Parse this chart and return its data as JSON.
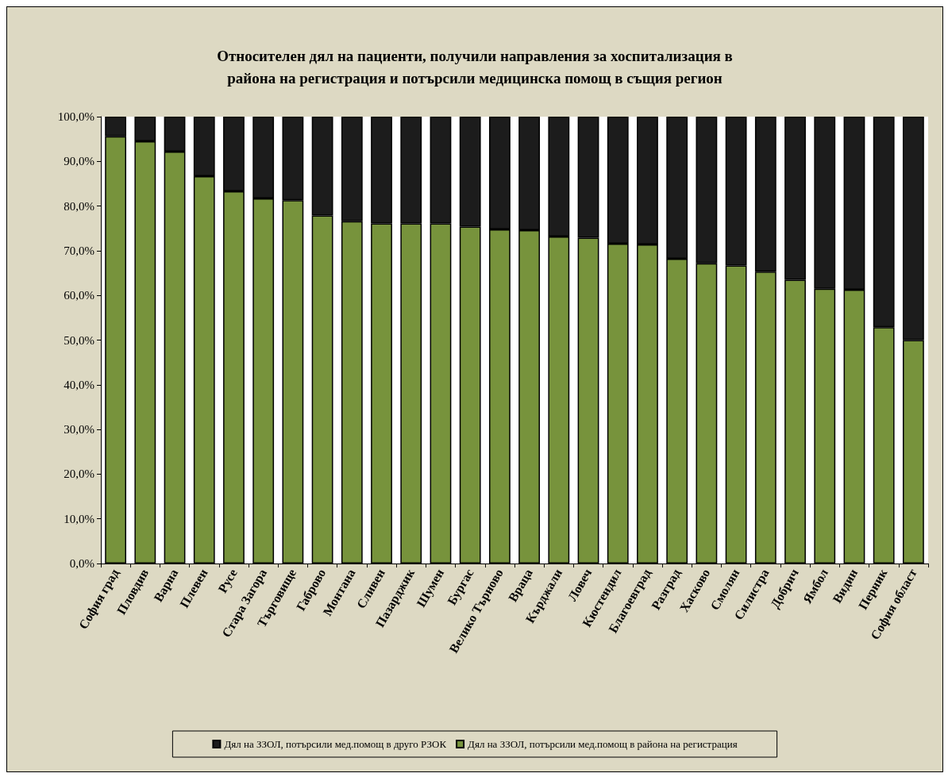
{
  "chart_data": {
    "type": "bar",
    "stacked": true,
    "title": "Относителен дял на пациенти, получили направления за хоспитализация в\nрайона на регистрация и потърсили медицинска помощ в същия регион",
    "categories": [
      "София град",
      "Пловдив",
      "Варна",
      "Плевен",
      "Русе",
      "Стара Загора",
      "Търговище",
      "Габрово",
      "Монтана",
      "Сливен",
      "Пазарджик",
      "Шумен",
      "Бургас",
      "Велико Търново",
      "Враца",
      "Кърджали",
      "Ловеч",
      "Кюстендил",
      "Благоевград",
      "Разград",
      "Хасково",
      "Смолян",
      "Силистра",
      "Добрич",
      "Ямбол",
      "Видин",
      "Перник",
      "София област"
    ],
    "series": [
      {
        "name": "Дял на ЗЗОЛ, потърсили мед.помощ в района на регистрация",
        "color": "#77933c",
        "values": [
          95.6,
          94.5,
          92.2,
          86.7,
          83.3,
          81.7,
          81.3,
          77.9,
          76.6,
          76.1,
          76.1,
          76.1,
          75.4,
          74.8,
          74.6,
          73.2,
          72.9,
          71.6,
          71.4,
          68.2,
          67.2,
          66.7,
          65.3,
          63.5,
          61.5,
          61.3,
          52.9,
          50.0
        ]
      },
      {
        "name": "Дял на ЗЗОЛ, потърсили мед.помощ в друго РЗОК",
        "color": "#1c1c1c",
        "values": [
          4.4,
          5.5,
          7.8,
          13.3,
          16.7,
          18.3,
          18.7,
          22.1,
          23.4,
          23.9,
          23.9,
          23.9,
          24.6,
          25.2,
          25.4,
          26.8,
          27.1,
          28.4,
          28.6,
          31.8,
          32.8,
          33.3,
          34.7,
          36.5,
          38.5,
          38.7,
          47.1,
          50.0
        ]
      }
    ],
    "ylim": [
      0,
      100
    ],
    "yticks": [
      {
        "value": 0,
        "label": "0,0%"
      },
      {
        "value": 10,
        "label": "10,0%"
      },
      {
        "value": 20,
        "label": "20,0%"
      },
      {
        "value": 30,
        "label": "30,0%"
      },
      {
        "value": 40,
        "label": "40,0%"
      },
      {
        "value": 50,
        "label": "50,0%"
      },
      {
        "value": 60,
        "label": "60,0%"
      },
      {
        "value": 70,
        "label": "70,0%"
      },
      {
        "value": 80,
        "label": "80,0%"
      },
      {
        "value": 90,
        "label": "90,0%"
      },
      {
        "value": 100,
        "label": "100,0%"
      }
    ],
    "grid": false,
    "legend": "bottom"
  }
}
